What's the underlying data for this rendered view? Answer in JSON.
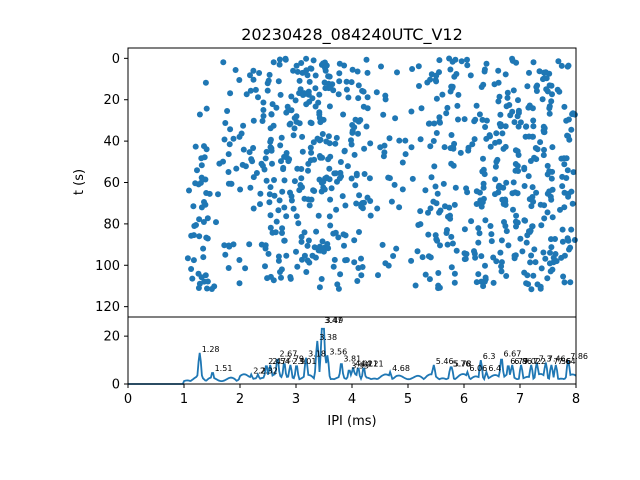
{
  "chart_data": [
    {
      "type": "scatter",
      "title": "20230428_084240UTC_V12",
      "xlabel": "",
      "ylabel": "t (s)",
      "xlim": [
        0,
        8
      ],
      "ylim": [
        125,
        -5
      ],
      "y_ticks": [
        "0",
        "20",
        "40",
        "60",
        "80",
        "100",
        "120"
      ],
      "color": "#1f77b4",
      "points_note": "dense scatter of IPI values (1.0–8.0 ms) over time 0–120 s"
    },
    {
      "type": "line",
      "title": "",
      "xlabel": "IPI (ms)",
      "ylabel": "",
      "xlim": [
        0,
        8
      ],
      "ylim": [
        0,
        28
      ],
      "x_ticks": [
        "0",
        "1",
        "2",
        "3",
        "4",
        "5",
        "6",
        "7",
        "8"
      ],
      "y_ticks": [
        "0",
        "20"
      ],
      "color": "#1f77b4",
      "peaks": [
        {
          "x": 1.28,
          "y": 13,
          "label": "1.28"
        },
        {
          "x": 1.51,
          "y": 5,
          "label": "1.51"
        },
        {
          "x": 2.2,
          "y": 4,
          "label": "2.2"
        },
        {
          "x": 2.32,
          "y": 4,
          "label": "2.32"
        },
        {
          "x": 2.47,
          "y": 8,
          "label": "2.47"
        },
        {
          "x": 2.54,
          "y": 8,
          "label": "2.54"
        },
        {
          "x": 2.67,
          "y": 11,
          "label": "2.67"
        },
        {
          "x": 2.79,
          "y": 9,
          "label": "2.79"
        },
        {
          "x": 2.9,
          "y": 8,
          "label": "2.9"
        },
        {
          "x": 3.01,
          "y": 8,
          "label": "3.01"
        },
        {
          "x": 3.18,
          "y": 11,
          "label": "3.18"
        },
        {
          "x": 3.38,
          "y": 18,
          "label": "3.38"
        },
        {
          "x": 3.47,
          "y": 25,
          "label": "3.47"
        },
        {
          "x": 3.49,
          "y": 25,
          "label": "3.49"
        },
        {
          "x": 3.56,
          "y": 12,
          "label": "3.56"
        },
        {
          "x": 3.81,
          "y": 9,
          "label": "3.81"
        },
        {
          "x": 3.95,
          "y": 6,
          "label": "3.95"
        },
        {
          "x": 4.02,
          "y": 7,
          "label": "4.02"
        },
        {
          "x": 4.11,
          "y": 7,
          "label": "4.11"
        },
        {
          "x": 4.21,
          "y": 7,
          "label": "4.21"
        },
        {
          "x": 4.68,
          "y": 5,
          "label": "4.68"
        },
        {
          "x": 5.46,
          "y": 8,
          "label": "5.46"
        },
        {
          "x": 5.76,
          "y": 7,
          "label": "5.76"
        },
        {
          "x": 5.78,
          "y": 7,
          "label": "5.78"
        },
        {
          "x": 6.06,
          "y": 5,
          "label": "6.06"
        },
        {
          "x": 6.3,
          "y": 10,
          "label": "6.3"
        },
        {
          "x": 6.4,
          "y": 5,
          "label": "6.4"
        },
        {
          "x": 6.67,
          "y": 11,
          "label": "6.67"
        },
        {
          "x": 6.79,
          "y": 8,
          "label": "6.79"
        },
        {
          "x": 6.86,
          "y": 8,
          "label": "6.86"
        },
        {
          "x": 7.02,
          "y": 8,
          "label": "7.02"
        },
        {
          "x": 7.2,
          "y": 8,
          "label": "7.2"
        },
        {
          "x": 7.3,
          "y": 9,
          "label": "7.3"
        },
        {
          "x": 7.46,
          "y": 9,
          "label": "7.46"
        },
        {
          "x": 7.56,
          "y": 8,
          "label": "7.56"
        },
        {
          "x": 7.64,
          "y": 8,
          "label": "7.64"
        },
        {
          "x": 7.86,
          "y": 10,
          "label": "7.86"
        }
      ]
    }
  ]
}
